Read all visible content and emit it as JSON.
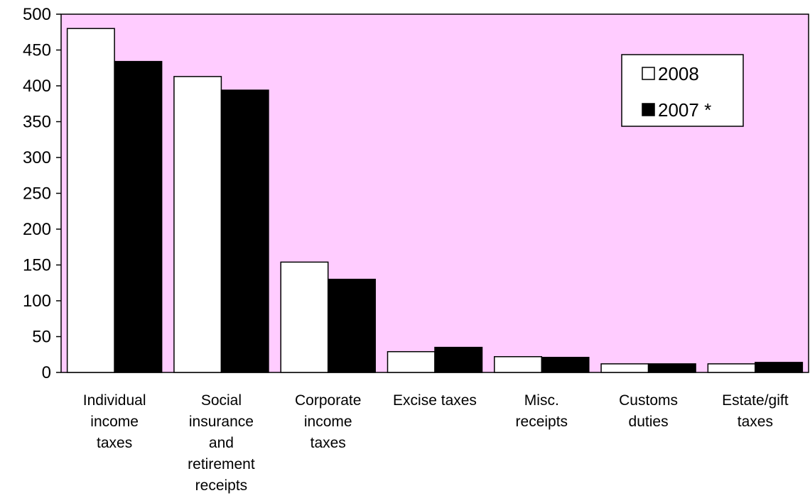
{
  "chart_data": {
    "type": "bar",
    "categories": [
      [
        "Individual",
        "income",
        "taxes"
      ],
      [
        "Social",
        "insurance",
        "and",
        "retirement",
        "receipts"
      ],
      [
        "Corporate",
        "income",
        "taxes"
      ],
      [
        "Excise taxes"
      ],
      [
        "Misc.",
        "receipts"
      ],
      [
        "Customs",
        "duties"
      ],
      [
        "Estate/gift",
        "taxes"
      ]
    ],
    "series": [
      {
        "name": "2008",
        "values": [
          480,
          413,
          154,
          29,
          22,
          12,
          12
        ]
      },
      {
        "name": "2007 *",
        "values": [
          434,
          394,
          130,
          35,
          21,
          12,
          14
        ]
      }
    ],
    "yticks": [
      "0",
      "50",
      "100",
      "150",
      "200",
      "250",
      "300",
      "350",
      "400",
      "450",
      "500"
    ],
    "ylim": [
      0,
      500
    ],
    "grid": false,
    "legend_position": "top-right",
    "colors": {
      "plot_background": "#ffccff",
      "series": [
        "#ffffff",
        "#000000"
      ],
      "stroke": "#000000"
    }
  }
}
